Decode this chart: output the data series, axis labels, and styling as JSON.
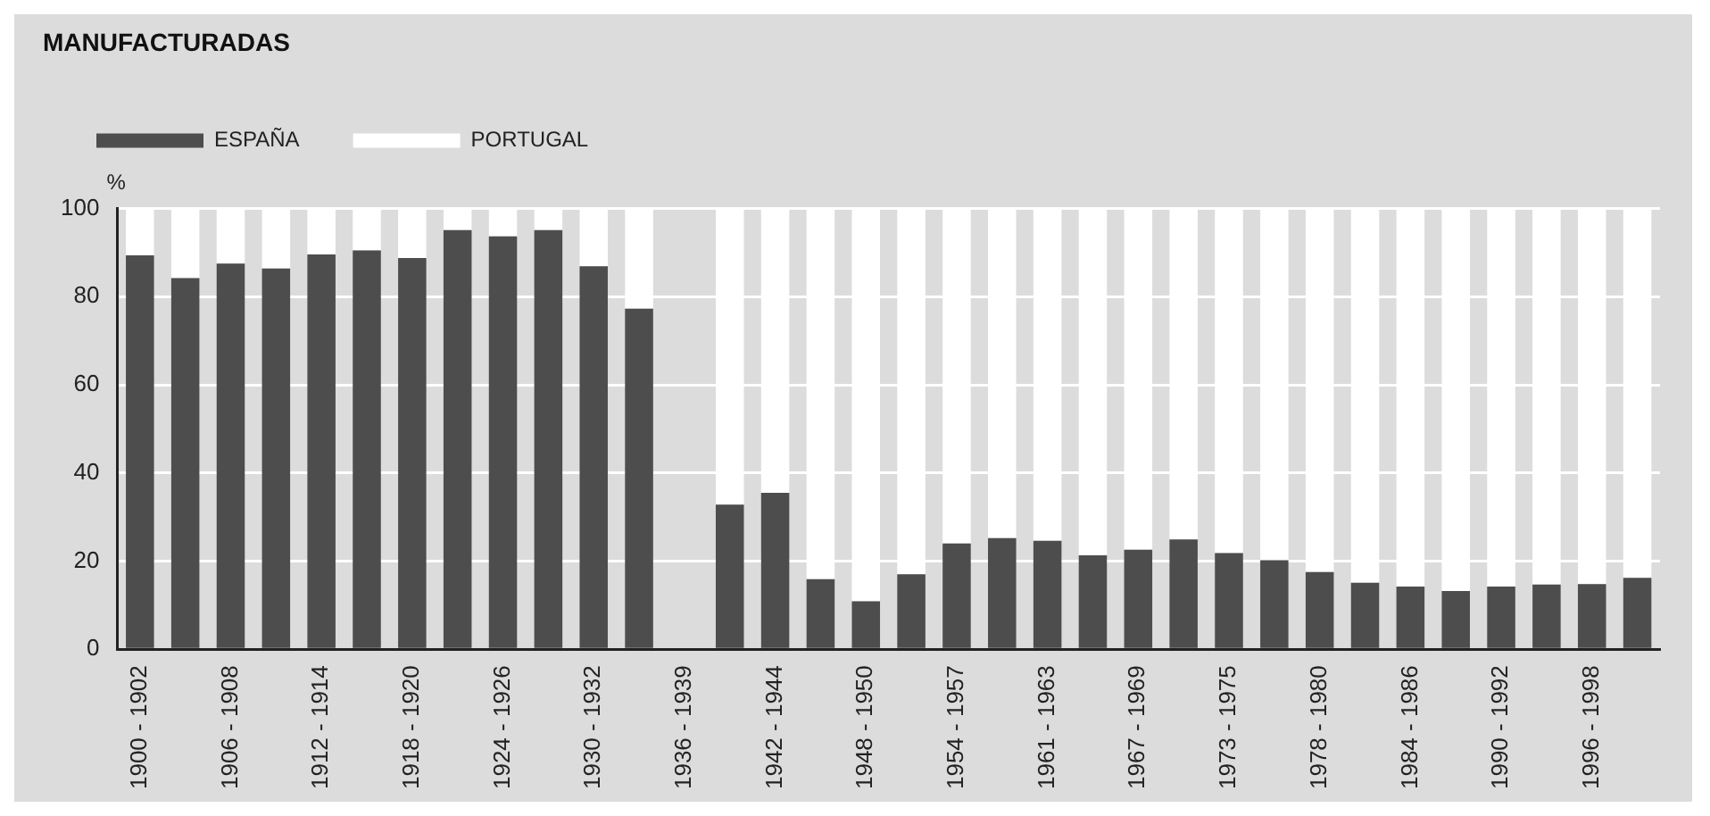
{
  "chart_data": {
    "type": "bar",
    "title": "MANUFACTURADAS",
    "ylabel": "%",
    "stacked": true,
    "legend": "top left",
    "grid": "y",
    "ylim": [
      0,
      100
    ],
    "yticks": [
      0,
      20,
      40,
      60,
      80,
      100
    ],
    "categories": [
      "1900 - 1902",
      null,
      "1906 - 1908",
      null,
      "1912 - 1914",
      null,
      "1918 - 1920",
      null,
      "1924 - 1926",
      null,
      "1930 - 1932",
      null,
      "1936 - 1939",
      null,
      "1942 - 1944",
      null,
      "1948 - 1950",
      null,
      "1954 - 1957",
      null,
      "1961 - 1963",
      null,
      "1967 - 1969",
      null,
      "1973 - 1975",
      null,
      "1978 - 1980",
      null,
      "1984 - 1986",
      null,
      "1990 - 1992",
      null,
      "1996 - 1998",
      null
    ],
    "series": [
      {
        "name": "ESPAÑA",
        "color": "#4d4d4d",
        "values": [
          89.4,
          84.2,
          87.5,
          86.4,
          89.6,
          90.5,
          88.8,
          95.1,
          93.7,
          95.1,
          86.9,
          77.3,
          null,
          32.8,
          35.5,
          15.9,
          10.9,
          17.0,
          24.0,
          25.2,
          24.6,
          21.3,
          22.6,
          24.9,
          21.8,
          20.2,
          17.5,
          15.1,
          14.2,
          13.2,
          14.2,
          14.7,
          14.8,
          16.2
        ]
      },
      {
        "name": "PORTUGAL",
        "color": "#ffffff",
        "values": [
          10.6,
          15.8,
          12.5,
          13.6,
          10.4,
          9.5,
          11.2,
          4.9,
          6.3,
          4.9,
          13.1,
          22.7,
          null,
          67.2,
          64.5,
          84.1,
          89.1,
          83.0,
          76.0,
          74.8,
          75.4,
          78.7,
          77.4,
          75.1,
          78.2,
          79.8,
          82.5,
          84.9,
          85.8,
          86.8,
          85.8,
          85.3,
          85.2,
          83.8
        ]
      }
    ]
  }
}
